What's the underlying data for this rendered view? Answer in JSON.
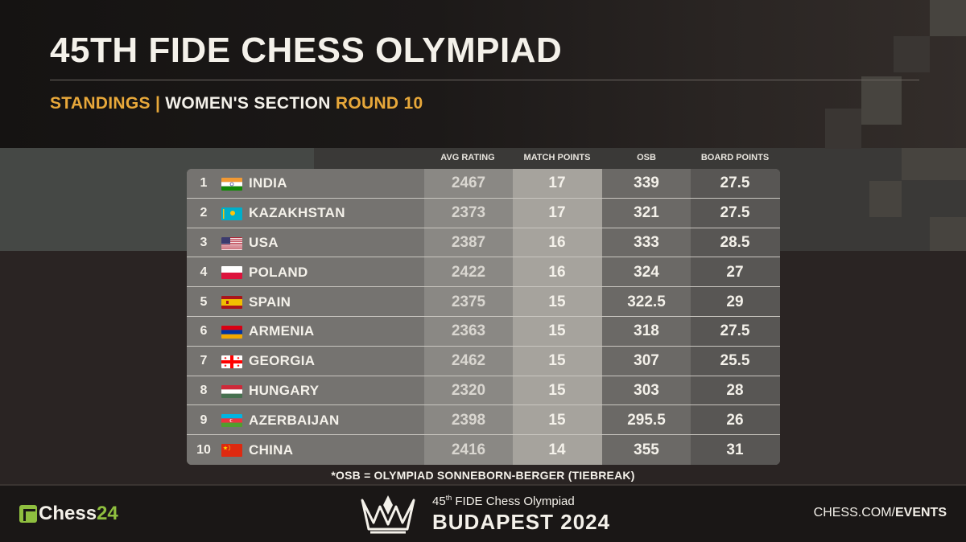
{
  "header": {
    "title": "45TH FIDE CHESS OLYMPIAD",
    "subtitle_part1": "STANDINGS |",
    "subtitle_part2": "WOMEN'S SECTION",
    "subtitle_part3": "ROUND 10"
  },
  "columns": {
    "avg_rating": "AVG RATING",
    "match_points": "MATCH POINTS",
    "osb": "OSB",
    "board_points": "BOARD POINTS"
  },
  "rows": [
    {
      "rank": "1",
      "team": "INDIA",
      "flag": "flag-india",
      "avg_rating": "2467",
      "match_points": "17",
      "osb": "339",
      "board_points": "27.5"
    },
    {
      "rank": "2",
      "team": "KAZAKHSTAN",
      "flag": "flag-kazakhstan",
      "avg_rating": "2373",
      "match_points": "17",
      "osb": "321",
      "board_points": "27.5"
    },
    {
      "rank": "3",
      "team": "USA",
      "flag": "flag-usa",
      "avg_rating": "2387",
      "match_points": "16",
      "osb": "333",
      "board_points": "28.5"
    },
    {
      "rank": "4",
      "team": "POLAND",
      "flag": "flag-poland",
      "avg_rating": "2422",
      "match_points": "16",
      "osb": "324",
      "board_points": "27"
    },
    {
      "rank": "5",
      "team": "SPAIN",
      "flag": "flag-spain",
      "avg_rating": "2375",
      "match_points": "15",
      "osb": "322.5",
      "board_points": "29"
    },
    {
      "rank": "6",
      "team": "ARMENIA",
      "flag": "flag-armenia",
      "avg_rating": "2363",
      "match_points": "15",
      "osb": "318",
      "board_points": "27.5"
    },
    {
      "rank": "7",
      "team": "GEORGIA",
      "flag": "flag-georgia",
      "avg_rating": "2462",
      "match_points": "15",
      "osb": "307",
      "board_points": "25.5"
    },
    {
      "rank": "8",
      "team": "HUNGARY",
      "flag": "flag-hungary",
      "avg_rating": "2320",
      "match_points": "15",
      "osb": "303",
      "board_points": "28"
    },
    {
      "rank": "9",
      "team": "AZERBAIJAN",
      "flag": "flag-azerbaijan",
      "avg_rating": "2398",
      "match_points": "15",
      "osb": "295.5",
      "board_points": "26"
    },
    {
      "rank": "10",
      "team": "CHINA",
      "flag": "flag-china",
      "avg_rating": "2416",
      "match_points": "14",
      "osb": "355",
      "board_points": "31"
    }
  ],
  "footnote": "*OSB = OLYMPIAD SONNEBORN-BERGER (TIEBREAK)",
  "footer": {
    "chess24_part1": "Chess",
    "chess24_part2": "24",
    "event_line1_num": "45",
    "event_line1_sup": "th",
    "event_line1_rest": " FIDE Chess Olympiad",
    "event_line2": "BUDAPEST 2024",
    "events_part1": "CHESS.COM/",
    "events_part2": "EVENTS",
    "crown_icon": "crown-logo-icon"
  },
  "colors": {
    "gold": "#e8a83a",
    "chess24_green": "#8fbf3f",
    "text": "#f4f1ea"
  }
}
